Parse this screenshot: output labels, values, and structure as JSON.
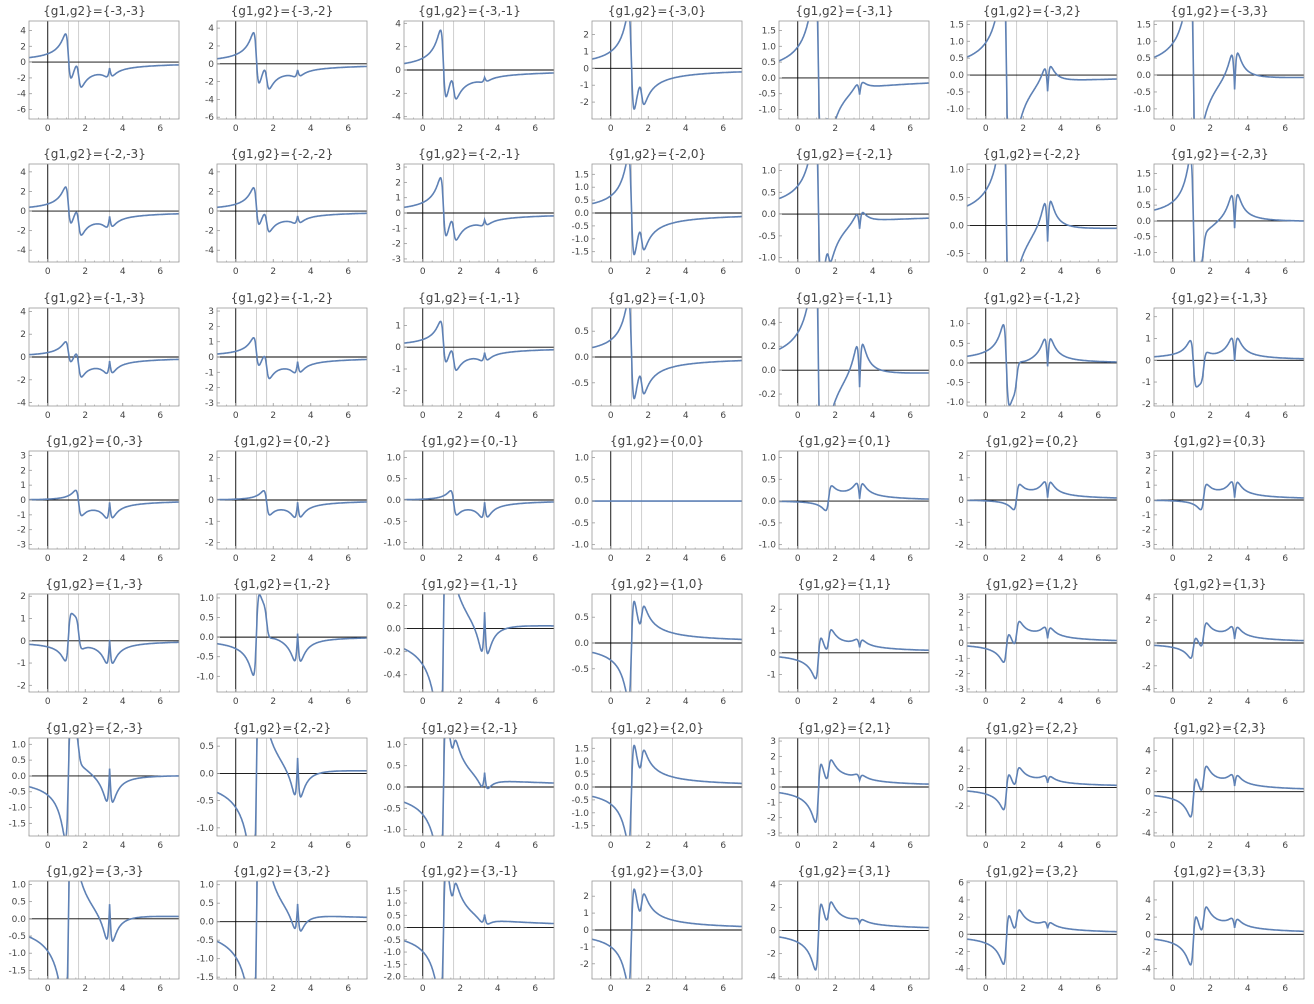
{
  "colors": {
    "curve": "#5E81B5",
    "frame": "#999999",
    "axis": "#000000",
    "gridline": "#BBBBBB",
    "text": "#444444"
  },
  "chart_data": {
    "type": "line",
    "layout": "7x7 grid of small multiples",
    "x_range": [
      -1,
      7
    ],
    "x_ticks": [
      0,
      2,
      4,
      6
    ],
    "vertical_reference_lines": [
      0,
      1.1,
      1.65,
      3.3
    ],
    "panels": [
      {
        "title": "{g1,g2}={-3,-3}",
        "g1": -3,
        "g2": -3,
        "ylim": [
          -7.2,
          5.2
        ],
        "yticks": [
          -6,
          -4,
          -2,
          0,
          2,
          4
        ],
        "ytick_labels": [
          "-6",
          "-4",
          "-2",
          "0",
          "2",
          "4"
        ]
      },
      {
        "title": "{g1,g2}={-3,-2}",
        "g1": -3,
        "g2": -2,
        "ylim": [
          -6.2,
          4.8
        ],
        "yticks": [
          -6,
          -4,
          -2,
          0,
          2,
          4
        ],
        "ytick_labels": [
          "-6",
          "-4",
          "-2",
          "0",
          "2",
          "4"
        ]
      },
      {
        "title": "{g1,g2}={-3,-1}",
        "g1": -3,
        "g2": -1,
        "ylim": [
          -4.2,
          4.2
        ],
        "yticks": [
          -4,
          -2,
          0,
          2,
          4
        ],
        "ytick_labels": [
          "-4",
          "-2",
          "0",
          "2",
          "4"
        ]
      },
      {
        "title": "{g1,g2}={-3,0}",
        "g1": -3,
        "g2": 0,
        "ylim": [
          -3.0,
          2.8
        ],
        "yticks": [
          -2,
          -1,
          0,
          1,
          2
        ],
        "ytick_labels": [
          "-2",
          "-1",
          "0",
          "1",
          "2"
        ]
      },
      {
        "title": "{g1,g2}={-3,1}",
        "g1": -3,
        "g2": 1,
        "ylim": [
          -1.3,
          1.8
        ],
        "yticks": [
          -1,
          -0.5,
          0,
          0.5,
          1,
          1.5
        ],
        "ytick_labels": [
          "-1.0",
          "-0.5",
          "0.0",
          "0.5",
          "1.0",
          "1.5"
        ]
      },
      {
        "title": "{g1,g2}={-3,2}",
        "g1": -3,
        "g2": 2,
        "ylim": [
          -1.3,
          1.6
        ],
        "yticks": [
          -1,
          -0.5,
          0,
          0.5,
          1,
          1.5
        ],
        "ytick_labels": [
          "-1.0",
          "-0.5",
          "0.0",
          "0.5",
          "1.0",
          "1.5"
        ]
      },
      {
        "title": "{g1,g2}={-3,3}",
        "g1": -3,
        "g2": 3,
        "ylim": [
          -1.3,
          1.6
        ],
        "yticks": [
          -1,
          -0.5,
          0,
          0.5,
          1,
          1.5
        ],
        "ytick_labels": [
          "-1.0",
          "-0.5",
          "0.0",
          "0.5",
          "1.0",
          "1.5"
        ]
      },
      {
        "title": "{g1,g2}={-2,-3}",
        "g1": -2,
        "g2": -3,
        "ylim": [
          -5.2,
          4.8
        ],
        "yticks": [
          -4,
          -2,
          0,
          2,
          4
        ],
        "ytick_labels": [
          "-4",
          "-2",
          "0",
          "2",
          "4"
        ]
      },
      {
        "title": "{g1,g2}={-2,-2}",
        "g1": -2,
        "g2": -2,
        "ylim": [
          -5.2,
          4.8
        ],
        "yticks": [
          -4,
          -2,
          0,
          2,
          4
        ],
        "ytick_labels": [
          "-4",
          "-2",
          "0",
          "2",
          "4"
        ]
      },
      {
        "title": "{g1,g2}={-2,-1}",
        "g1": -2,
        "g2": -1,
        "ylim": [
          -3.2,
          3.2
        ],
        "yticks": [
          -3,
          -2,
          -1,
          0,
          1,
          2,
          3
        ],
        "ytick_labels": [
          "-3",
          "-2",
          "-1",
          "0",
          "1",
          "2",
          "3"
        ]
      },
      {
        "title": "{g1,g2}={-2,0}",
        "g1": -2,
        "g2": 0,
        "ylim": [
          -1.9,
          1.9
        ],
        "yticks": [
          -1.5,
          -1,
          -0.5,
          0,
          0.5,
          1,
          1.5
        ],
        "ytick_labels": [
          "-1.5",
          "-1.0",
          "-0.5",
          "0.0",
          "0.5",
          "1.0",
          "1.5"
        ]
      },
      {
        "title": "{g1,g2}={-2,1}",
        "g1": -2,
        "g2": 1,
        "ylim": [
          -1.1,
          1.15
        ],
        "yticks": [
          -1,
          -0.5,
          0,
          0.5,
          1
        ],
        "ytick_labels": [
          "-1.0",
          "-0.5",
          "0.0",
          "0.5",
          "1.0"
        ]
      },
      {
        "title": "{g1,g2}={-2,2}",
        "g1": -2,
        "g2": 2,
        "ylim": [
          -0.65,
          1.1
        ],
        "yticks": [
          -0.5,
          0,
          0.5,
          1
        ],
        "ytick_labels": [
          "-0.5",
          "0.0",
          "0.5",
          "1.0"
        ]
      },
      {
        "title": "{g1,g2}={-2,3}",
        "g1": -2,
        "g2": 3,
        "ylim": [
          -1.3,
          1.8
        ],
        "yticks": [
          -1,
          -0.5,
          0,
          0.5,
          1,
          1.5
        ],
        "ytick_labels": [
          "-1.0",
          "-0.5",
          "0.0",
          "0.5",
          "1.0",
          "1.5"
        ]
      },
      {
        "title": "{g1,g2}={-1,-3}",
        "g1": -1,
        "g2": -3,
        "ylim": [
          -4.3,
          4.3
        ],
        "yticks": [
          -4,
          -2,
          0,
          2,
          4
        ],
        "ytick_labels": [
          "-4",
          "-2",
          "0",
          "2",
          "4"
        ]
      },
      {
        "title": "{g1,g2}={-1,-2}",
        "g1": -1,
        "g2": -2,
        "ylim": [
          -3.2,
          3.2
        ],
        "yticks": [
          -3,
          -2,
          -1,
          0,
          1,
          2,
          3
        ],
        "ytick_labels": [
          "-3",
          "-2",
          "-1",
          "0",
          "1",
          "2",
          "3"
        ]
      },
      {
        "title": "{g1,g2}={-1,-1}",
        "g1": -1,
        "g2": -1,
        "ylim": [
          -2.7,
          1.8
        ],
        "yticks": [
          -2,
          -1,
          0,
          1
        ],
        "ytick_labels": [
          "-2",
          "-1",
          "0",
          "1"
        ]
      },
      {
        "title": "{g1,g2}={-1,0}",
        "g1": -1,
        "g2": 0,
        "ylim": [
          -0.95,
          0.95
        ],
        "yticks": [
          -0.5,
          0,
          0.5
        ],
        "ytick_labels": [
          "-0.5",
          "0.0",
          "0.5"
        ]
      },
      {
        "title": "{g1,g2}={-1,1}",
        "g1": -1,
        "g2": 1,
        "ylim": [
          -0.3,
          0.52
        ],
        "yticks": [
          -0.2,
          0,
          0.2,
          0.4
        ],
        "ytick_labels": [
          "-0.2",
          "0.0",
          "0.2",
          "0.4"
        ]
      },
      {
        "title": "{g1,g2}={-1,2}",
        "g1": -1,
        "g2": 2,
        "ylim": [
          -1.1,
          1.4
        ],
        "yticks": [
          -1,
          -0.5,
          0,
          0.5,
          1
        ],
        "ytick_labels": [
          "-1.0",
          "-0.5",
          "0.0",
          "0.5",
          "1.0"
        ]
      },
      {
        "title": "{g1,g2}={-1,3}",
        "g1": -1,
        "g2": 3,
        "ylim": [
          -2.1,
          2.4
        ],
        "yticks": [
          -2,
          -1,
          0,
          1,
          2
        ],
        "ytick_labels": [
          "-2",
          "-1",
          "0",
          "1",
          "2"
        ]
      },
      {
        "title": "{g1,g2}={0,-3}",
        "g1": 0,
        "g2": -3,
        "ylim": [
          -3.3,
          3.3
        ],
        "yticks": [
          -3,
          -2,
          -1,
          0,
          1,
          2,
          3
        ],
        "ytick_labels": [
          "-3",
          "-2",
          "-1",
          "0",
          "1",
          "2",
          "3"
        ]
      },
      {
        "title": "{g1,g2}={0,-2}",
        "g1": 0,
        "g2": -2,
        "ylim": [
          -2.3,
          2.3
        ],
        "yticks": [
          -2,
          -1,
          0,
          1,
          2
        ],
        "ytick_labels": [
          "-2",
          "-1",
          "0",
          "1",
          "2"
        ]
      },
      {
        "title": "{g1,g2}={0,-1}",
        "g1": 0,
        "g2": -1,
        "ylim": [
          -1.15,
          1.15
        ],
        "yticks": [
          -1,
          -0.5,
          0,
          0.5,
          1
        ],
        "ytick_labels": [
          "-1.0",
          "-0.5",
          "0.0",
          "0.5",
          "1.0"
        ]
      },
      {
        "title": "{g1,g2}={0,0}",
        "g1": 0,
        "g2": 0,
        "ylim": [
          -1.1,
          1.15
        ],
        "yticks": [
          -1,
          -0.5,
          0,
          0.5,
          1
        ],
        "ytick_labels": [
          "-1.0",
          "-0.5",
          "0.0",
          "0.5",
          "1.0"
        ]
      },
      {
        "title": "{g1,g2}={0,1}",
        "g1": 0,
        "g2": 1,
        "ylim": [
          -1.1,
          1.15
        ],
        "yticks": [
          -1,
          -0.5,
          0,
          0.5,
          1
        ],
        "ytick_labels": [
          "-1.0",
          "-0.5",
          "0.0",
          "0.5",
          "1.0"
        ]
      },
      {
        "title": "{g1,g2}={0,2}",
        "g1": 0,
        "g2": 2,
        "ylim": [
          -2.2,
          2.2
        ],
        "yticks": [
          -2,
          -1,
          0,
          1,
          2
        ],
        "ytick_labels": [
          "-2",
          "-1",
          "0",
          "1",
          "2"
        ]
      },
      {
        "title": "{g1,g2}={0,3}",
        "g1": 0,
        "g2": 3,
        "ylim": [
          -3.3,
          3.3
        ],
        "yticks": [
          -3,
          -2,
          -1,
          0,
          1,
          2,
          3
        ],
        "ytick_labels": [
          "-3",
          "-2",
          "-1",
          "0",
          "1",
          "2",
          "3"
        ]
      },
      {
        "title": "{g1,g2}={1,-3}",
        "g1": 1,
        "g2": -3,
        "ylim": [
          -2.3,
          2.1
        ],
        "yticks": [
          -2,
          -1,
          0,
          1,
          2
        ],
        "ytick_labels": [
          "-2",
          "-1",
          "0",
          "1",
          "2"
        ]
      },
      {
        "title": "{g1,g2}={1,-2}",
        "g1": 1,
        "g2": -2,
        "ylim": [
          -1.4,
          1.1
        ],
        "yticks": [
          -1,
          -0.5,
          0,
          0.5,
          1
        ],
        "ytick_labels": [
          "-1.0",
          "-0.5",
          "0.0",
          "0.5",
          "1.0"
        ]
      },
      {
        "title": "{g1,g2}={1,-1}",
        "g1": 1,
        "g2": -1,
        "ylim": [
          -0.55,
          0.3
        ],
        "yticks": [
          -0.4,
          -0.2,
          0,
          0.2
        ],
        "ytick_labels": [
          "-0.4",
          "-0.2",
          "0.0",
          "0.2"
        ]
      },
      {
        "title": "{g1,g2}={1,0}",
        "g1": 1,
        "g2": 0,
        "ylim": [
          -0.95,
          0.95
        ],
        "yticks": [
          -0.5,
          0,
          0.5
        ],
        "ytick_labels": [
          "-0.5",
          "0.0",
          "0.5"
        ]
      },
      {
        "title": "{g1,g2}={1,1}",
        "g1": 1,
        "g2": 1,
        "ylim": [
          -1.8,
          2.7
        ],
        "yticks": [
          -1,
          0,
          1,
          2
        ],
        "ytick_labels": [
          "-1",
          "0",
          "1",
          "2"
        ]
      },
      {
        "title": "{g1,g2}={1,2}",
        "g1": 1,
        "g2": 2,
        "ylim": [
          -3.2,
          3.2
        ],
        "yticks": [
          -3,
          -2,
          -1,
          0,
          1,
          2,
          3
        ],
        "ytick_labels": [
          "-3",
          "-2",
          "-1",
          "0",
          "1",
          "2",
          "3"
        ]
      },
      {
        "title": "{g1,g2}={1,3}",
        "g1": 1,
        "g2": 3,
        "ylim": [
          -4.3,
          4.3
        ],
        "yticks": [
          -4,
          -2,
          0,
          2,
          4
        ],
        "ytick_labels": [
          "-4",
          "-2",
          "0",
          "2",
          "4"
        ]
      },
      {
        "title": "{g1,g2}={2,-3}",
        "g1": 2,
        "g2": -3,
        "ylim": [
          -1.9,
          1.2
        ],
        "yticks": [
          -1.5,
          -1,
          -0.5,
          0,
          0.5,
          1
        ],
        "ytick_labels": [
          "-1.5",
          "-1.0",
          "-0.5",
          "0.0",
          "0.5",
          "1.0"
        ]
      },
      {
        "title": "{g1,g2}={2,-2}",
        "g1": 2,
        "g2": -2,
        "ylim": [
          -1.15,
          0.65
        ],
        "yticks": [
          -1,
          -0.5,
          0,
          0.5
        ],
        "ytick_labels": [
          "-1.0",
          "-0.5",
          "0.0",
          "0.5"
        ]
      },
      {
        "title": "{g1,g2}={2,-1}",
        "g1": 2,
        "g2": -1,
        "ylim": [
          -1.15,
          1.15
        ],
        "yticks": [
          -1,
          -0.5,
          0,
          0.5,
          1
        ],
        "ytick_labels": [
          "-1.0",
          "-0.5",
          "0.0",
          "0.5",
          "1.0"
        ]
      },
      {
        "title": "{g1,g2}={2,0}",
        "g1": 2,
        "g2": 0,
        "ylim": [
          -1.9,
          1.9
        ],
        "yticks": [
          -1.5,
          -1,
          -0.5,
          0,
          0.5,
          1,
          1.5
        ],
        "ytick_labels": [
          "-1.5",
          "-1.0",
          "-0.5",
          "0.0",
          "0.5",
          "1.0",
          "1.5"
        ]
      },
      {
        "title": "{g1,g2}={2,1}",
        "g1": 2,
        "g2": 1,
        "ylim": [
          -3.2,
          3.2
        ],
        "yticks": [
          -3,
          -2,
          -1,
          0,
          1,
          2,
          3
        ],
        "ytick_labels": [
          "-3",
          "-2",
          "-1",
          "0",
          "1",
          "2",
          "3"
        ]
      },
      {
        "title": "{g1,g2}={2,2}",
        "g1": 2,
        "g2": 2,
        "ylim": [
          -5.2,
          5.3
        ],
        "yticks": [
          -2,
          0,
          2,
          4
        ],
        "ytick_labels": [
          "-2",
          "0",
          "2",
          "4"
        ]
      },
      {
        "title": "{g1,g2}={2,3}",
        "g1": 2,
        "g2": 3,
        "ylim": [
          -4.3,
          5.2
        ],
        "yticks": [
          -4,
          -2,
          0,
          2,
          4
        ],
        "ytick_labels": [
          "-4",
          "-2",
          "0",
          "2",
          "4"
        ]
      },
      {
        "title": "{g1,g2}={3,-3}",
        "g1": 3,
        "g2": -3,
        "ylim": [
          -1.75,
          1.1
        ],
        "yticks": [
          -1.5,
          -1,
          -0.5,
          0,
          0.5,
          1
        ],
        "ytick_labels": [
          "-1.5",
          "-1.0",
          "-0.5",
          "0.0",
          "0.5",
          "1.0"
        ]
      },
      {
        "title": "{g1,g2}={3,-2}",
        "g1": 3,
        "g2": -2,
        "ylim": [
          -1.55,
          1.1
        ],
        "yticks": [
          -1.5,
          -1,
          -0.5,
          0,
          0.5,
          1
        ],
        "ytick_labels": [
          "-1.5",
          "-1.0",
          "-0.5",
          "0.0",
          "0.5",
          "1.0"
        ]
      },
      {
        "title": "{g1,g2}={3,-1}",
        "g1": 3,
        "g2": -1,
        "ylim": [
          -2.1,
          1.9
        ],
        "yticks": [
          -2,
          -1.5,
          -1,
          -0.5,
          0,
          0.5,
          1,
          1.5
        ],
        "ytick_labels": [
          "-2.0",
          "-1.5",
          "-1.0",
          "-0.5",
          "0.0",
          "0.5",
          "1.0",
          "1.5"
        ]
      },
      {
        "title": "{g1,g2}={3,0}",
        "g1": 3,
        "g2": 0,
        "ylim": [
          -2.9,
          2.9
        ],
        "yticks": [
          -2,
          -1,
          0,
          1,
          2
        ],
        "ytick_labels": [
          "-2",
          "-1",
          "0",
          "1",
          "2"
        ]
      },
      {
        "title": "{g1,g2}={3,1}",
        "g1": 3,
        "g2": 1,
        "ylim": [
          -4.2,
          4.3
        ],
        "yticks": [
          -4,
          -2,
          0,
          2,
          4
        ],
        "ytick_labels": [
          "-4",
          "-2",
          "0",
          "2",
          "4"
        ]
      },
      {
        "title": "{g1,g2}={3,2}",
        "g1": 3,
        "g2": 2,
        "ylim": [
          -5.2,
          6.2
        ],
        "yticks": [
          -4,
          -2,
          0,
          2,
          4,
          6
        ],
        "ytick_labels": [
          "-4",
          "-2",
          "0",
          "2",
          "4",
          "6"
        ]
      },
      {
        "title": "{g1,g2}={3,3}",
        "g1": 3,
        "g2": 3,
        "ylim": [
          -5.2,
          6.2
        ],
        "yticks": [
          -4,
          -2,
          0,
          2,
          4
        ],
        "ytick_labels": [
          "-4",
          "-2",
          "0",
          "2",
          "4"
        ]
      }
    ]
  }
}
